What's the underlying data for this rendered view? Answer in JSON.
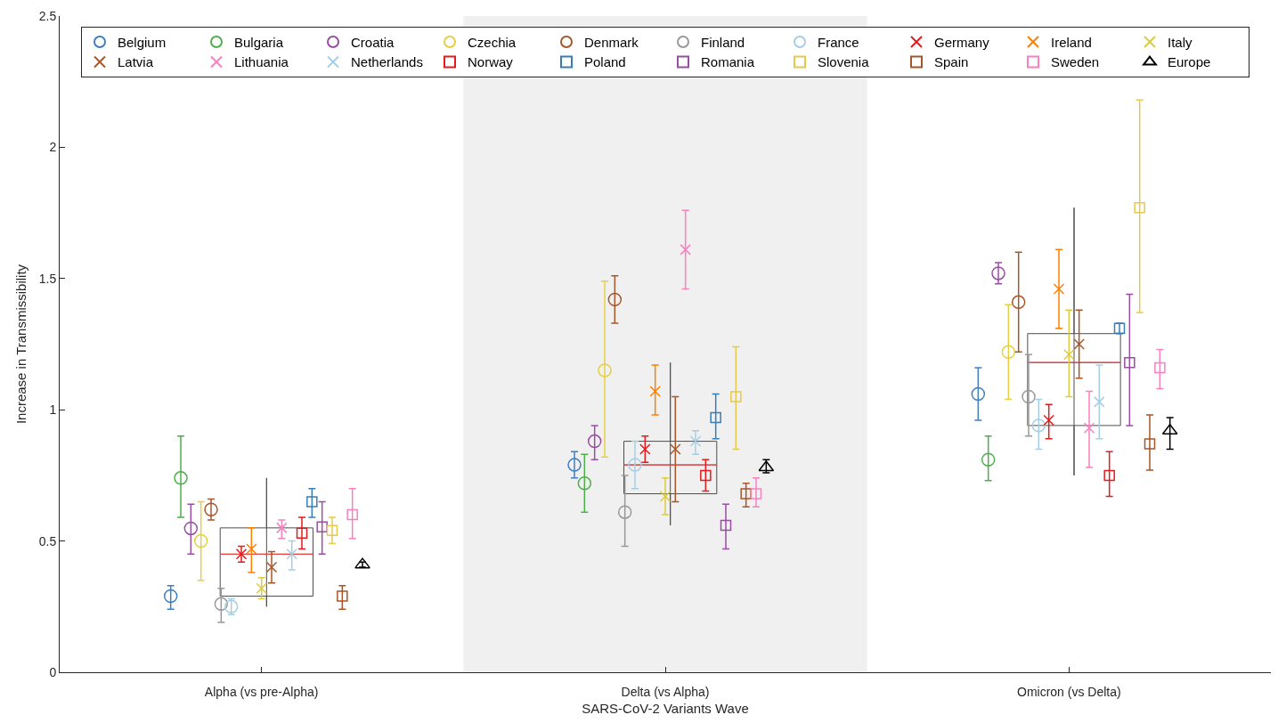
{
  "chart_data": {
    "type": "box",
    "xlabel": "SARS-CoV-2 Variants Wave",
    "ylabel": "Increase in Transmissibility",
    "categories": [
      "Alpha (vs pre-Alpha)",
      "Delta (vs Alpha)",
      "Omicron (vs Delta)"
    ],
    "ylim": [
      0,
      2.5
    ],
    "yticks": [
      0,
      0.5,
      1,
      1.5,
      2,
      2.5
    ],
    "legend": "top",
    "bands": [
      {
        "axis": "x",
        "from": "Delta (vs Alpha)",
        "to": "Delta (vs Alpha)",
        "color": "#f0f0f0"
      }
    ],
    "color": "#4d4d4d",
    "boxes": [
      {
        "low": 0.25,
        "q1": 0.29,
        "median": 0.45,
        "q3": 0.55,
        "high": 0.74
      },
      {
        "low": 0.56,
        "q1": 0.68,
        "median": 0.79,
        "q3": 0.88,
        "high": 1.18
      },
      {
        "low": 0.75,
        "q1": 0.94,
        "median": 1.18,
        "q3": 1.29,
        "high": 1.77
      }
    ],
    "series": [
      {
        "type": "scatter",
        "name": "Belgium",
        "color": "#3f7fbf",
        "marker": "circle",
        "values": [
          0.29,
          0.79,
          1.06
        ],
        "errors": [
          [
            0.24,
            0.33
          ],
          [
            0.74,
            0.84
          ],
          [
            0.96,
            1.16
          ]
        ]
      },
      {
        "type": "scatter",
        "name": "Bulgaria",
        "color": "#4daf4a",
        "marker": "circle",
        "values": [
          0.74,
          0.72,
          0.81
        ],
        "errors": [
          [
            0.59,
            0.9
          ],
          [
            0.61,
            0.83
          ],
          [
            0.73,
            0.9
          ]
        ]
      },
      {
        "type": "scatter",
        "name": "Croatia",
        "color": "#984ea3",
        "marker": "circle",
        "values": [
          0.548,
          0.88,
          1.52
        ],
        "errors": [
          [
            0.45,
            0.64
          ],
          [
            0.81,
            0.94
          ],
          [
            1.48,
            1.56
          ]
        ]
      },
      {
        "type": "scatter",
        "name": "Czechia",
        "color": "#e6cf40",
        "marker": "circle",
        "values": [
          0.5,
          1.15,
          1.22
        ],
        "errors": [
          [
            0.35,
            0.65
          ],
          [
            0.82,
            1.49
          ],
          [
            1.04,
            1.4
          ]
        ]
      },
      {
        "type": "scatter",
        "name": "Denmark",
        "color": "#a6562b",
        "marker": "circle",
        "values": [
          0.62,
          1.42,
          1.41
        ],
        "errors": [
          [
            0.58,
            0.66
          ],
          [
            1.33,
            1.51
          ],
          [
            1.22,
            1.6
          ]
        ]
      },
      {
        "type": "scatter",
        "name": "Finland",
        "color": "#999999",
        "marker": "circle",
        "values": [
          0.26,
          0.61,
          1.05
        ],
        "errors": [
          [
            0.19,
            0.32
          ],
          [
            0.48,
            0.75
          ],
          [
            0.9,
            1.21
          ]
        ]
      },
      {
        "type": "scatter",
        "name": "France",
        "color": "#a6cee3",
        "marker": "circle",
        "values": [
          0.25,
          0.79,
          0.94
        ],
        "errors": [
          [
            0.22,
            0.28
          ],
          [
            0.7,
            0.88
          ],
          [
            0.85,
            1.04
          ]
        ]
      },
      {
        "type": "scatter",
        "name": "Germany",
        "color": "#e41a1c",
        "marker": "cross",
        "values": [
          0.45,
          0.85,
          0.96
        ],
        "errors": [
          [
            0.42,
            0.48
          ],
          [
            0.8,
            0.9
          ],
          [
            0.89,
            1.02
          ]
        ]
      },
      {
        "type": "scatter",
        "name": "Ireland",
        "color": "#ff7f00",
        "marker": "cross",
        "values": [
          0.47,
          1.07,
          1.46
        ],
        "errors": [
          [
            0.38,
            0.55
          ],
          [
            0.98,
            1.17
          ],
          [
            1.31,
            1.61
          ]
        ]
      },
      {
        "type": "scatter",
        "name": "Italy",
        "color": "#dccb3c",
        "marker": "cross",
        "values": [
          0.32,
          0.67,
          1.21
        ],
        "errors": [
          [
            0.28,
            0.36
          ],
          [
            0.6,
            0.74
          ],
          [
            1.05,
            1.38
          ]
        ]
      },
      {
        "type": "scatter",
        "name": "Latvia",
        "color": "#a65628",
        "marker": "cross",
        "values": [
          0.4,
          0.85,
          1.25
        ],
        "errors": [
          [
            0.34,
            0.46
          ],
          [
            0.65,
            1.05
          ],
          [
            1.12,
            1.38
          ]
        ]
      },
      {
        "type": "scatter",
        "name": "Lithuania",
        "color": "#f781bf",
        "marker": "cross",
        "values": [
          0.55,
          1.61,
          0.93
        ],
        "errors": [
          [
            0.51,
            0.58
          ],
          [
            1.46,
            1.76
          ],
          [
            0.78,
            1.07
          ]
        ]
      },
      {
        "type": "scatter",
        "name": "Netherlands",
        "color": "#a6cee3",
        "marker": "cross",
        "values": [
          0.45,
          0.88,
          1.03
        ],
        "errors": [
          [
            0.39,
            0.5
          ],
          [
            0.83,
            0.92
          ],
          [
            0.89,
            1.17
          ]
        ]
      },
      {
        "type": "scatter",
        "name": "Norway",
        "color": "#e41a1c",
        "marker": "square",
        "values": [
          0.53,
          0.75,
          0.75
        ],
        "errors": [
          [
            0.47,
            0.59
          ],
          [
            0.69,
            0.81
          ],
          [
            0.67,
            0.84
          ]
        ]
      },
      {
        "type": "scatter",
        "name": "Poland",
        "color": "#377eb8",
        "marker": "square",
        "values": [
          0.65,
          0.97,
          1.31
        ],
        "errors": [
          [
            0.59,
            0.7
          ],
          [
            0.89,
            1.06
          ],
          [
            1.29,
            1.33
          ]
        ]
      },
      {
        "type": "scatter",
        "name": "Romania",
        "color": "#984ea3",
        "marker": "square",
        "values": [
          0.554,
          0.56,
          1.18
        ],
        "errors": [
          [
            0.45,
            0.65
          ],
          [
            0.47,
            0.64
          ],
          [
            0.94,
            1.44
          ]
        ]
      },
      {
        "type": "scatter",
        "name": "Slovenia",
        "color": "#e5c94d",
        "marker": "square",
        "values": [
          0.54,
          1.05,
          1.77
        ],
        "errors": [
          [
            0.49,
            0.59
          ],
          [
            0.85,
            1.24
          ],
          [
            1.37,
            2.18
          ]
        ]
      },
      {
        "type": "scatter",
        "name": "Spain",
        "color": "#a65628",
        "marker": "square",
        "values": [
          0.29,
          0.68,
          0.87
        ],
        "errors": [
          [
            0.24,
            0.33
          ],
          [
            0.63,
            0.72
          ],
          [
            0.77,
            0.98
          ]
        ]
      },
      {
        "type": "scatter",
        "name": "Sweden",
        "color": "#f781bf",
        "marker": "square",
        "values": [
          0.6,
          0.68,
          1.16
        ],
        "errors": [
          [
            0.51,
            0.7
          ],
          [
            0.63,
            0.74
          ],
          [
            1.08,
            1.23
          ]
        ]
      },
      {
        "type": "scatter",
        "name": "Europe",
        "color": "#000000",
        "marker": "triangle",
        "values": [
          0.41,
          0.78,
          0.92
        ],
        "errors": [
          [
            0.4,
            0.42
          ],
          [
            0.76,
            0.81
          ],
          [
            0.85,
            0.97
          ]
        ]
      }
    ]
  }
}
